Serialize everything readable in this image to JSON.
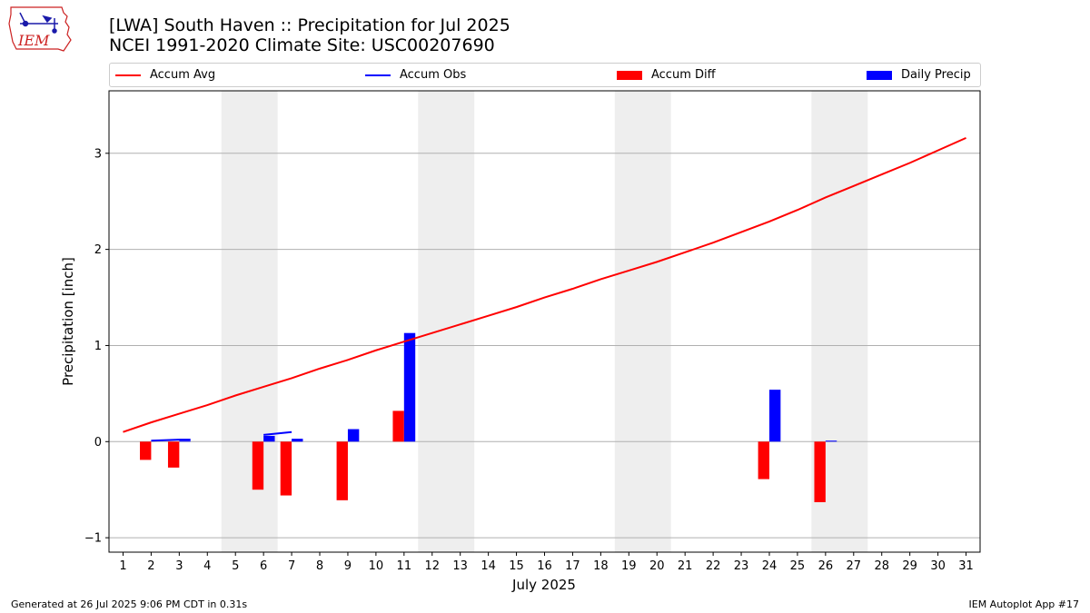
{
  "logo": {
    "text": "IEM"
  },
  "title_line1": "[LWA] South Haven :: Precipitation for Jul 2025",
  "title_line2": "NCEI 1991-2020 Climate Site: USC00207690",
  "footer_left": "Generated at 26 Jul 2025 9:06 PM CDT in 0.31s",
  "footer_right": "IEM Autoplot App #17",
  "chart_data": {
    "type": "bar",
    "xlabel": "July 2025",
    "ylabel": "Precipitation [inch]",
    "xlim": [
      0.5,
      31.5
    ],
    "ylim": [
      -1.15,
      3.65
    ],
    "yticks": [
      -1,
      0,
      1,
      2,
      3
    ],
    "x": [
      1,
      2,
      3,
      4,
      5,
      6,
      7,
      8,
      9,
      10,
      11,
      12,
      13,
      14,
      15,
      16,
      17,
      18,
      19,
      20,
      21,
      22,
      23,
      24,
      25,
      26,
      27,
      28,
      29,
      30,
      31
    ],
    "weekend_shading": [
      [
        4.5,
        6.5
      ],
      [
        11.5,
        13.5
      ],
      [
        18.5,
        20.5
      ],
      [
        25.5,
        27.5
      ]
    ],
    "grid": "horizontal",
    "legend_position": "top",
    "colors": {
      "accum_avg": "#ff0000",
      "accum_obs": "#0000ff",
      "accum_diff": "#ff0000",
      "daily_precip": "#0000ff",
      "shade": "#eeeeee"
    },
    "series": [
      {
        "name": "Accum Avg",
        "kind": "line",
        "values": [
          0.1,
          0.2,
          0.29,
          0.38,
          0.48,
          0.57,
          0.66,
          0.76,
          0.85,
          0.95,
          1.04,
          1.13,
          1.22,
          1.31,
          1.4,
          1.5,
          1.59,
          1.69,
          1.78,
          1.87,
          1.97,
          2.07,
          2.18,
          2.29,
          2.41,
          2.54,
          2.66,
          2.78,
          2.9,
          3.03,
          3.16
        ]
      },
      {
        "name": "Accum Obs",
        "kind": "line",
        "segments": [
          {
            "x": [
              2,
              3,
              3.4
            ],
            "values": [
              0.01,
              0.02,
              0.02
            ]
          },
          {
            "x": [
              6,
              7
            ],
            "values": [
              0.07,
              0.1
            ]
          }
        ]
      },
      {
        "name": "Accum Diff",
        "kind": "bar",
        "x": [
          2,
          3,
          6,
          7,
          9,
          11,
          24,
          26
        ],
        "values": [
          -0.19,
          -0.27,
          -0.5,
          -0.56,
          -0.61,
          0.32,
          -0.39,
          -0.63
        ]
      },
      {
        "name": "Daily Precip",
        "kind": "bar",
        "x": [
          3,
          6,
          7,
          9,
          11,
          24,
          26
        ],
        "values": [
          0.01,
          0.06,
          0.03,
          0.13,
          1.13,
          0.54,
          0.01
        ]
      }
    ]
  }
}
